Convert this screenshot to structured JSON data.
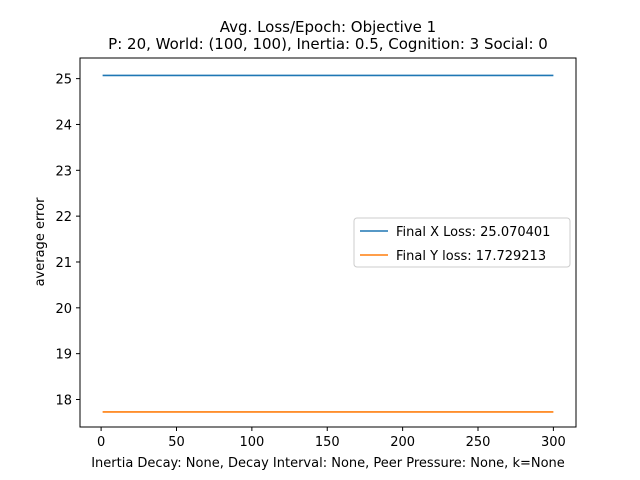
{
  "chart_data": {
    "type": "line",
    "title_line1": "Avg. Loss/Epoch: Objective 1",
    "title_line2": "P: 20, World: (100, 100), Inertia: 0.5, Cognition: 3 Social: 0",
    "xlabel": "Inertia Decay: None, Decay Interval: None, Peer Pressure: None, k=None",
    "ylabel": "average error",
    "xlim": [
      -14,
      315
    ],
    "ylim": [
      17.4,
      25.45
    ],
    "xticks": [
      0,
      50,
      100,
      150,
      200,
      250,
      300
    ],
    "yticks": [
      18,
      19,
      20,
      21,
      22,
      23,
      24,
      25
    ],
    "legend_position": "center-right",
    "grid": false,
    "series": [
      {
        "name": "Final X Loss: 25.070401",
        "color": "#1f77b4",
        "x": [
          1,
          300
        ],
        "y": [
          25.070401,
          25.070401
        ]
      },
      {
        "name": "Final Y loss: 17.729213",
        "color": "#ff7f0e",
        "x": [
          1,
          300
        ],
        "y": [
          17.729213,
          17.729213
        ]
      }
    ]
  }
}
